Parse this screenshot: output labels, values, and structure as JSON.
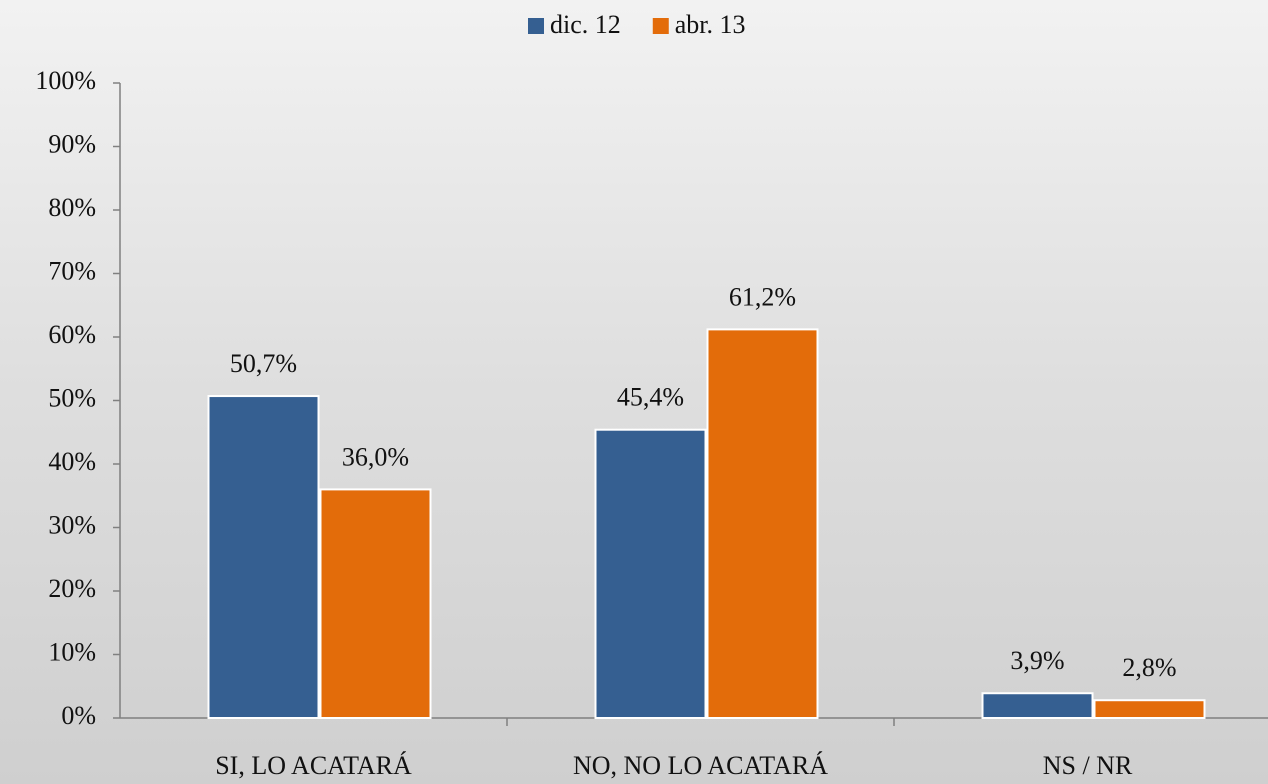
{
  "chart_data": {
    "type": "bar",
    "categories": [
      "SI, LO ACATARÁ",
      "NO, NO LO ACATARÁ",
      "NS / NR"
    ],
    "series": [
      {
        "name": "dic. 12",
        "color": "#355f91",
        "values": [
          50.7,
          45.4,
          3.9
        ],
        "value_labels": [
          "50,7%",
          "45,4%",
          "3,9%"
        ]
      },
      {
        "name": "abr. 13",
        "color": "#e36c0a",
        "values": [
          36.0,
          61.2,
          2.8
        ],
        "value_labels": [
          "36,0%",
          "61,2%",
          "2,8%"
        ]
      }
    ],
    "ylim": [
      0,
      100
    ],
    "yticks": [
      {
        "value": 0,
        "label": "0%"
      },
      {
        "value": 10,
        "label": "10%"
      },
      {
        "value": 20,
        "label": "20%"
      },
      {
        "value": 30,
        "label": "30%"
      },
      {
        "value": 40,
        "label": "40%"
      },
      {
        "value": 50,
        "label": "50%"
      },
      {
        "value": 60,
        "label": "60%"
      },
      {
        "value": 70,
        "label": "70%"
      },
      {
        "value": 80,
        "label": "80%"
      },
      {
        "value": 90,
        "label": "90%"
      },
      {
        "value": 100,
        "label": "100%"
      }
    ],
    "grid": false,
    "legend": "top"
  }
}
